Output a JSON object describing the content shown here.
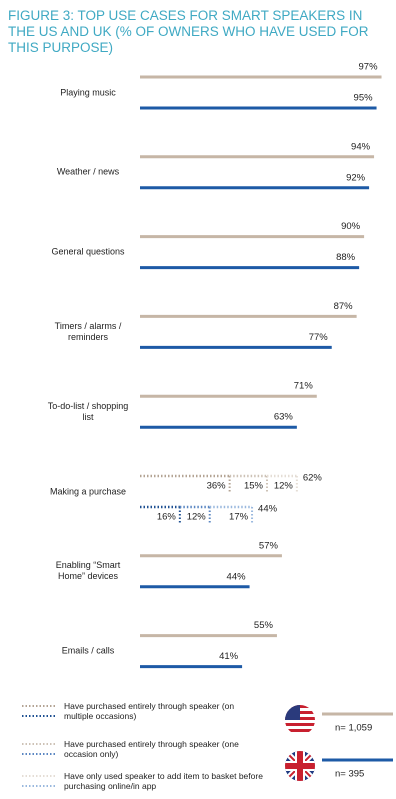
{
  "chart_data": {
    "type": "bar",
    "title": "FIGURE 3: TOP USE CASES FOR SMART SPEAKERS IN THE US AND UK (% OF OWNERS WHO HAVE USED FOR THIS PURPOSE)",
    "categories": [
      "Playing music",
      "Weather / news",
      "General questions",
      "Timers / alarms / reminders",
      "To-do-list / shopping list",
      "Making a purchase",
      "Enabling “Smart Home” devices",
      "Emails / calls"
    ],
    "xlim": [
      0,
      100
    ],
    "breakdown_category": 5,
    "breakdown_names": [
      "Have purchased entirely through speaker (on multiple occasions)",
      "Have purchased entirely through speaker (one occasion only)",
      "Have only used speaker to add item to basket before purchasing online/in app"
    ],
    "series": [
      {
        "label": "n= 1,059",
        "color": "#c6b6a6",
        "values": [
          97,
          94,
          90,
          87,
          71,
          62,
          57,
          55
        ],
        "value_labels": [
          "97%",
          "94%",
          "90%",
          "87%",
          "71%",
          "62%",
          "57%",
          "55%"
        ],
        "breakdown": [
          36,
          15,
          12
        ],
        "breakdown_labels": [
          "36%",
          "15%",
          "12%"
        ],
        "breakdown_colors": [
          "#b3a393",
          "#cdc2b6",
          "#e4ddd5"
        ]
      },
      {
        "label": "n= 395",
        "color": "#1d5aa6",
        "values": [
          95,
          92,
          88,
          77,
          63,
          44,
          44,
          41
        ],
        "value_labels": [
          "95%",
          "92%",
          "88%",
          "77%",
          "63%",
          "44%",
          "44%",
          "41%"
        ],
        "breakdown": [
          16,
          12,
          17
        ],
        "breakdown_labels": [
          "16%",
          "12%",
          "17%"
        ],
        "breakdown_colors": [
          "#1d4f91",
          "#5a86c2",
          "#9ab8de"
        ]
      }
    ]
  }
}
